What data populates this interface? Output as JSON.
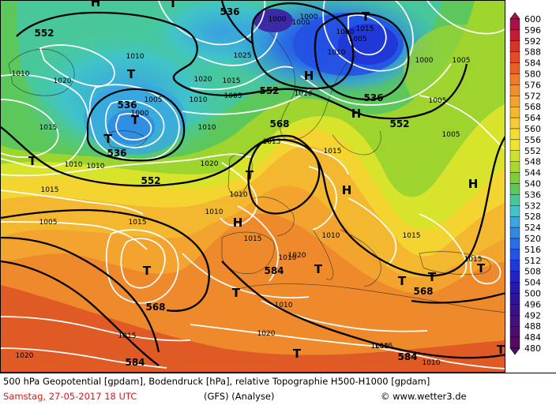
{
  "caption": {
    "description": "500 hPa Geopotential [gpdam], Bodendruck [hPa], relative Topographie H500-H1000 [gpdam]",
    "date": "Samstag, 27-05-2017  18 UTC",
    "model": "(GFS)  (Analyse)",
    "credit": "© www.wetter3.de"
  },
  "legend": {
    "values": [
      "600",
      "596",
      "592",
      "588",
      "584",
      "580",
      "576",
      "572",
      "568",
      "564",
      "560",
      "556",
      "552",
      "548",
      "544",
      "540",
      "536",
      "532",
      "528",
      "524",
      "520",
      "516",
      "512",
      "508",
      "504",
      "500",
      "496",
      "492",
      "488",
      "484",
      "480"
    ],
    "colors": [
      "#a8104a",
      "#c21c38",
      "#d8322a",
      "#e24a28",
      "#e86028",
      "#ee7a2a",
      "#f0902c",
      "#f2a42e",
      "#f4b830",
      "#f6cc32",
      "#f4dc30",
      "#eee62c",
      "#cce22c",
      "#a8d82c",
      "#7ece34",
      "#5cc85c",
      "#48c89a",
      "#40c4c8",
      "#38a8e0",
      "#308ae4",
      "#2a6ee6",
      "#2452e4",
      "#2038d8",
      "#2224c4",
      "#2818b0",
      "#301498",
      "#3a1288",
      "#44107a",
      "#4c0e6c",
      "#540c60"
    ]
  },
  "markers": {
    "pressure_centers": [
      {
        "label": "T"
      },
      {
        "label": "T"
      },
      {
        "label": "T"
      },
      {
        "label": "T"
      },
      {
        "label": "T"
      },
      {
        "label": "T"
      },
      {
        "label": "T"
      },
      {
        "label": "T"
      },
      {
        "label": "T"
      },
      {
        "label": "T"
      },
      {
        "label": "T"
      },
      {
        "label": "T"
      },
      {
        "label": "T"
      },
      {
        "label": "T"
      },
      {
        "label": "T"
      },
      {
        "label": "H"
      },
      {
        "label": "H"
      },
      {
        "label": "H"
      },
      {
        "label": "H"
      },
      {
        "label": "H"
      },
      {
        "label": "H"
      }
    ],
    "geopotential_labels": [
      {
        "label": "552"
      },
      {
        "label": "536"
      },
      {
        "label": "536"
      },
      {
        "label": "536"
      },
      {
        "label": "552"
      },
      {
        "label": "536"
      },
      {
        "label": "552"
      },
      {
        "label": "552"
      },
      {
        "label": "568"
      },
      {
        "label": "568"
      },
      {
        "label": "568"
      },
      {
        "label": "584"
      },
      {
        "label": "584"
      },
      {
        "label": "584"
      }
    ],
    "isobar_labels": [
      {
        "label": "1010"
      },
      {
        "label": "1020"
      },
      {
        "label": "1010"
      },
      {
        "label": "1005"
      },
      {
        "label": "1000"
      },
      {
        "label": "1015"
      },
      {
        "label": "1025"
      },
      {
        "label": "1020"
      },
      {
        "label": "1010"
      },
      {
        "label": "1015"
      },
      {
        "label": "1005"
      },
      {
        "label": "1010"
      },
      {
        "label": "1010"
      },
      {
        "label": "1000"
      },
      {
        "label": "1005"
      },
      {
        "label": "1015"
      },
      {
        "label": "1010"
      },
      {
        "label": "1010"
      },
      {
        "label": "1005"
      },
      {
        "label": "1000"
      },
      {
        "label": "1005"
      },
      {
        "label": "1005"
      },
      {
        "label": "1000"
      },
      {
        "label": "1000"
      },
      {
        "label": "1000"
      },
      {
        "label": "1010"
      },
      {
        "label": "1015"
      },
      {
        "label": "1020"
      },
      {
        "label": "1015"
      },
      {
        "label": "1015"
      },
      {
        "label": "1005"
      },
      {
        "label": "1015"
      },
      {
        "label": "1010"
      },
      {
        "label": "1015"
      },
      {
        "label": "1010"
      },
      {
        "label": "1010"
      },
      {
        "label": "1010"
      },
      {
        "label": "1015"
      },
      {
        "label": "1020"
      },
      {
        "label": "1020"
      },
      {
        "label": "1015"
      },
      {
        "label": "1010"
      },
      {
        "label": "1015"
      },
      {
        "label": "1015"
      },
      {
        "label": "1010"
      },
      {
        "label": "1010"
      },
      {
        "label": "1020"
      }
    ]
  }
}
